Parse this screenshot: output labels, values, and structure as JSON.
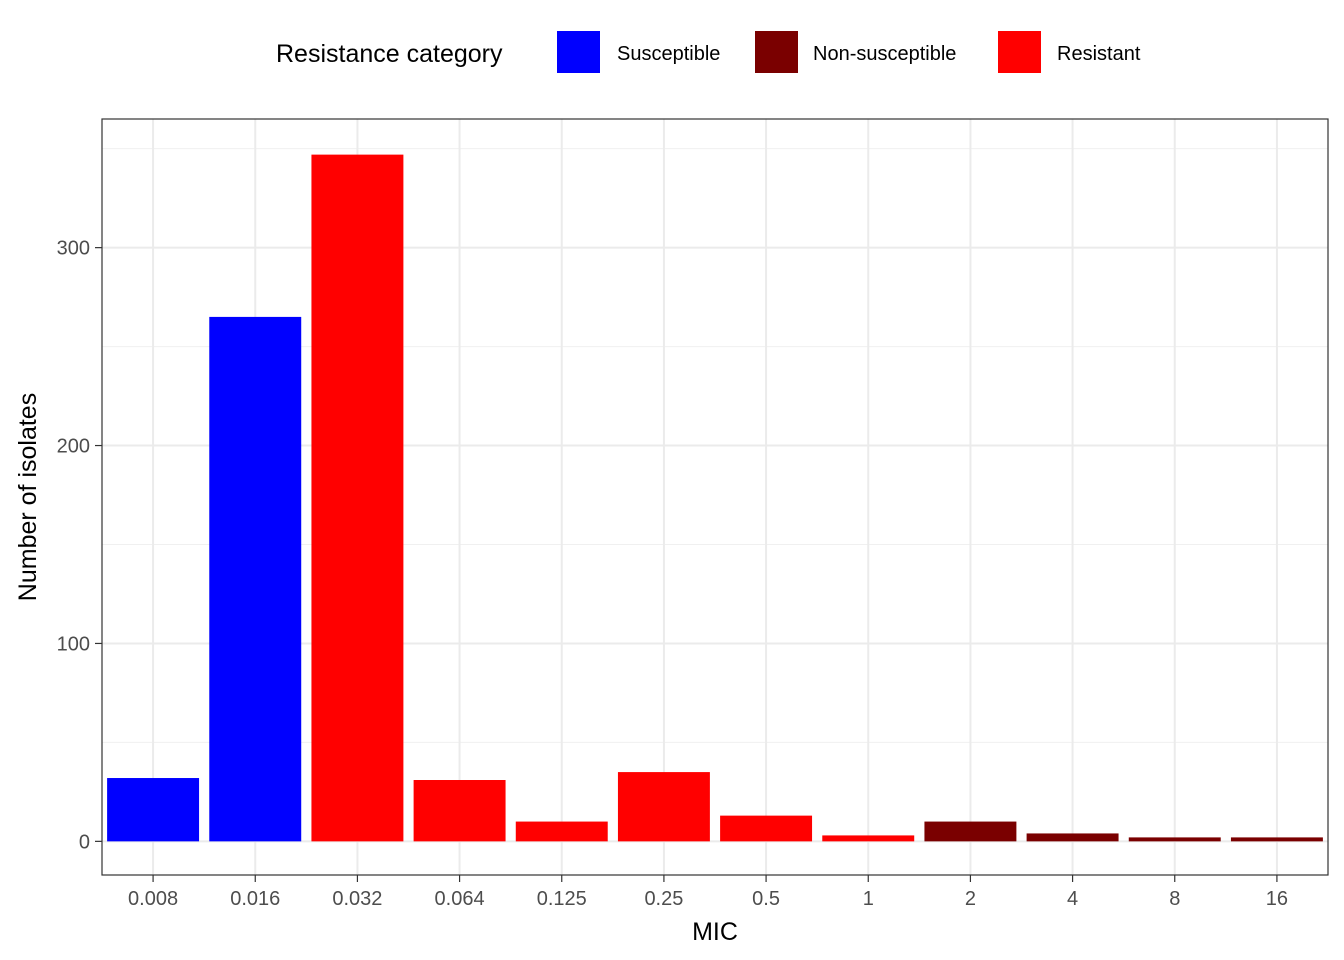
{
  "chart_data": {
    "type": "bar",
    "title": "",
    "xlabel": "MIC",
    "ylabel": "Number of isolates",
    "categories": [
      "0.008",
      "0.016",
      "0.032",
      "0.064",
      "0.125",
      "0.25",
      "0.5",
      "1",
      "2",
      "4",
      "8",
      "16"
    ],
    "values": [
      32,
      265,
      347,
      31,
      10,
      35,
      13,
      3,
      10,
      4,
      2,
      2
    ],
    "bar_categories": [
      "Susceptible",
      "Susceptible",
      "Resistant",
      "Resistant",
      "Resistant",
      "Resistant",
      "Resistant",
      "Resistant",
      "Non-susceptible",
      "Non-susceptible",
      "Non-susceptible",
      "Non-susceptible"
    ],
    "ylim": [
      -17,
      365
    ],
    "y_ticks": [
      0,
      100,
      200,
      300
    ],
    "y_tick_labels": [
      "0",
      "100",
      "200",
      "300"
    ],
    "grid": true,
    "legend": {
      "title": "Resistance category",
      "placement": "top",
      "entries": [
        {
          "name": "Susceptible",
          "color": "#0000FF"
        },
        {
          "name": "Non-susceptible",
          "color": "#7A0000"
        },
        {
          "name": "Resistant",
          "color": "#FF0000"
        }
      ]
    }
  }
}
